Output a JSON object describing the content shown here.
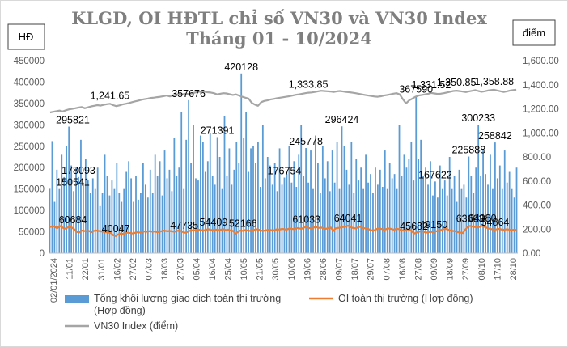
{
  "chart_data": {
    "type": "bar",
    "title_line1": "KLGD, OI HĐTL chỉ số VN30 và VN30 Index",
    "title_line2": "Tháng 01 - 10/2024",
    "left_unit": "HĐ",
    "right_unit": "điểm",
    "left_axis": {
      "ylim": [
        0,
        450000
      ],
      "ticks": [
        "0",
        "50000",
        "100000",
        "150000",
        "200000",
        "250000",
        "300000",
        "350000",
        "400000",
        "450000"
      ]
    },
    "right_axis": {
      "ylim": [
        0,
        1600
      ],
      "ticks": [
        "0.00",
        "200.00",
        "400.00",
        "600.00",
        "800.00",
        "1,000.00",
        "1,200.00",
        "1,400.00",
        "1,600.00"
      ]
    },
    "x_tick_labels": [
      "02/01/2024",
      "11/01",
      "22/01",
      "31/01",
      "16/02",
      "27/02",
      "07/03",
      "18/03",
      "27/03",
      "05/04",
      "16/04",
      "25/04",
      "10/05",
      "21/05",
      "30/05",
      "10/06",
      "19/06",
      "28/06",
      "09/07",
      "18/07",
      "29/07",
      "07/08",
      "16/08",
      "27/08",
      "09/09",
      "18/09",
      "27/09",
      "08/10",
      "17/10",
      "28/10"
    ],
    "colors": {
      "volume": "#5b9bd5",
      "oi": "#ed7d31",
      "index": "#a5a5a5"
    },
    "grid": false,
    "legend_position": "bottom",
    "series": [
      {
        "name": "Tổng khối lượng giao dịch toàn thị trường (Hợp đồng)",
        "axis": "left",
        "kind": "bar",
        "values": [
          150541,
          262000,
          120000,
          195000,
          150000,
          230000,
          178000,
          250000,
          295821,
          205000,
          145000,
          200000,
          178093,
          265000,
          165000,
          220000,
          170000,
          140000,
          175000,
          150000,
          200000,
          110000,
          140000,
          230000,
          180000,
          135000,
          170000,
          150000,
          210000,
          140000,
          120000,
          150000,
          190000,
          215000,
          175000,
          120000,
          180000,
          125000,
          140000,
          210000,
          160000,
          130000,
          195000,
          140000,
          230000,
          180000,
          215000,
          135000,
          240000,
          175000,
          195000,
          145000,
          270000,
          180000,
          200000,
          330000,
          150000,
          265000,
          357676,
          210000,
          300000,
          175000,
          170000,
          275000,
          260000,
          190000,
          215000,
          280000,
          180000,
          160000,
          271391,
          225000,
          150000,
          320000,
          180000,
          245000,
          160000,
          195000,
          260000,
          210000,
          420128,
          270000,
          330000,
          190000,
          245000,
          250000,
          210000,
          260000,
          155000,
          300000,
          175000,
          225000,
          205000,
          160000,
          210000,
          145000,
          245000,
          160000,
          176754,
          185000,
          250000,
          165000,
          215000,
          155000,
          230000,
          300000,
          180000,
          245778,
          165000,
          240000,
          150000,
          275000,
          210000,
          140000,
          250000,
          175000,
          215000,
          145000,
          240000,
          165000,
          260000,
          150000,
          296424,
          250000,
          195000,
          160000,
          260000,
          140000,
          220000,
          170000,
          200000,
          150000,
          230000,
          165000,
          185000,
          140000,
          200000,
          160000,
          195000,
          155000,
          240000,
          150000,
          210000,
          175000,
          185000,
          150000,
          300000,
          180000,
          230000,
          200000,
          220000,
          260000,
          170000,
          367590,
          220000,
          265000,
          180000,
          200000,
          160000,
          215000,
          135000,
          167622,
          130000,
          205000,
          150000,
          170000,
          135000,
          225000,
          150000,
          180000,
          120000,
          195000,
          150000,
          160000,
          130000,
          225888,
          180000,
          140000,
          200000,
          300233,
          180000,
          240000,
          185000,
          160000,
          230000,
          150000,
          258842,
          175000,
          205000,
          150000,
          240000,
          165000,
          190000,
          150000,
          130000,
          200000
        ]
      },
      {
        "name": "OI toàn thị trường (Hợp đồng)",
        "axis": "left",
        "kind": "line",
        "values": [
          60684,
          63000,
          62000,
          58000,
          64000,
          61000,
          57000,
          59000,
          62000,
          60000,
          56000,
          50000,
          48000,
          53000,
          52000,
          51000,
          52000,
          49000,
          52000,
          53000,
          52000,
          51000,
          50000,
          49000,
          48000,
          47000,
          42000,
          40047,
          44000,
          46000,
          45000,
          47000,
          48000,
          47000,
          46000,
          48000,
          49000,
          48000,
          50000,
          51000,
          50000,
          52000,
          50000,
          51000,
          49000,
          50000,
          52000,
          53000,
          51000,
          52000,
          51000,
          50000,
          52000,
          53000,
          51000,
          47735,
          49000,
          52000,
          53000,
          54000,
          53000,
          55000,
          54000,
          53000,
          55000,
          56000,
          54000,
          54409,
          55000,
          54000,
          55000,
          56000,
          54000,
          55000,
          53000,
          52000,
          45000,
          50000,
          53000,
          52166,
          54000,
          53000,
          52000,
          54000,
          55000,
          56000,
          54000,
          52000,
          53000,
          54000,
          55000,
          53000,
          54000,
          56000,
          55000,
          57000,
          56000,
          55000,
          58000,
          57000,
          56000,
          59000,
          58000,
          57000,
          60000,
          61033,
          59000,
          58000,
          60000,
          61000,
          59000,
          60000,
          58000,
          57000,
          59000,
          60000,
          52000,
          58000,
          59000,
          60000,
          61000,
          62000,
          64041,
          61000,
          59000,
          58000,
          60000,
          62000,
          59000,
          58000,
          57000,
          55000,
          53000,
          54000,
          57000,
          58000,
          56000,
          55000,
          57000,
          58000,
          56000,
          55000,
          57000,
          56000,
          54000,
          52000,
          56000,
          55000,
          53000,
          45682,
          48000,
          50000,
          52000,
          50000,
          48000,
          49000,
          50000,
          49150,
          51000,
          52000,
          54000,
          56000,
          57000,
          55000,
          53000,
          52000,
          51000,
          49000,
          48000,
          47000,
          55000,
          62000,
          63663,
          62000,
          61000,
          60000,
          62000,
          64080,
          61000,
          59000,
          57000,
          56000,
          55000,
          56000,
          57000,
          55000,
          54864,
          56000,
          55000,
          54000,
          55000,
          54000
        ]
      },
      {
        "name": "VN30 Index (điểm)",
        "axis": "right",
        "kind": "line",
        "values": [
          1170,
          1175,
          1180,
          1185,
          1178,
          1188,
          1195,
          1200,
          1205,
          1210,
          1215,
          1205,
          1212,
          1220,
          1225,
          1230,
          1226,
          1233,
          1238,
          1241.65,
          1230,
          1222,
          1228,
          1236,
          1242,
          1248,
          1255,
          1262,
          1268,
          1275,
          1280,
          1285,
          1290,
          1293,
          1297,
          1300,
          1305,
          1310,
          1303,
          1312,
          1318,
          1322,
          1320,
          1325,
          1323,
          1328,
          1335,
          1340,
          1345,
          1342,
          1338,
          1335,
          1330,
          1320,
          1325,
          1330,
          1328,
          1322,
          1315,
          1320,
          1310,
          1300,
          1292,
          1285,
          1250,
          1235,
          1225,
          1255,
          1265,
          1270,
          1278,
          1282,
          1288,
          1292,
          1296,
          1300,
          1305,
          1310,
          1316,
          1320,
          1325,
          1330,
          1333.85,
          1336,
          1340,
          1345,
          1350,
          1348,
          1346,
          1344,
          1340,
          1345,
          1348,
          1344,
          1340,
          1338,
          1334,
          1330,
          1325,
          1320,
          1315,
          1310,
          1306,
          1302,
          1300,
          1304,
          1310,
          1315,
          1320,
          1326,
          1330,
          1320,
          1280,
          1245,
          1270,
          1285,
          1300,
          1310,
          1315,
          1320,
          1325,
          1331.52,
          1328,
          1324,
          1326,
          1330,
          1336,
          1342,
          1348,
          1350.85,
          1347,
          1343,
          1339,
          1345,
          1350,
          1355,
          1348,
          1342,
          1346,
          1352,
          1355,
          1358.88,
          1352,
          1346,
          1340,
          1345,
          1352,
          1356,
          1358
        ]
      }
    ],
    "annotations_volume": [
      "150541",
      "295821",
      "178093",
      "357676",
      "271391",
      "420128",
      "176754",
      "245778",
      "296424",
      "367590",
      "167622",
      "225888",
      "300233",
      "258842"
    ],
    "annotations_oi": [
      "60684",
      "40047",
      "47735",
      "54409",
      "52166",
      "61033",
      "64041",
      "45682",
      "49150",
      "63663",
      "64080",
      "54864"
    ],
    "annotations_index": [
      "1,241.65",
      "1,333.85",
      "1,331.52",
      "1,350.85",
      "1,358.88"
    ]
  }
}
